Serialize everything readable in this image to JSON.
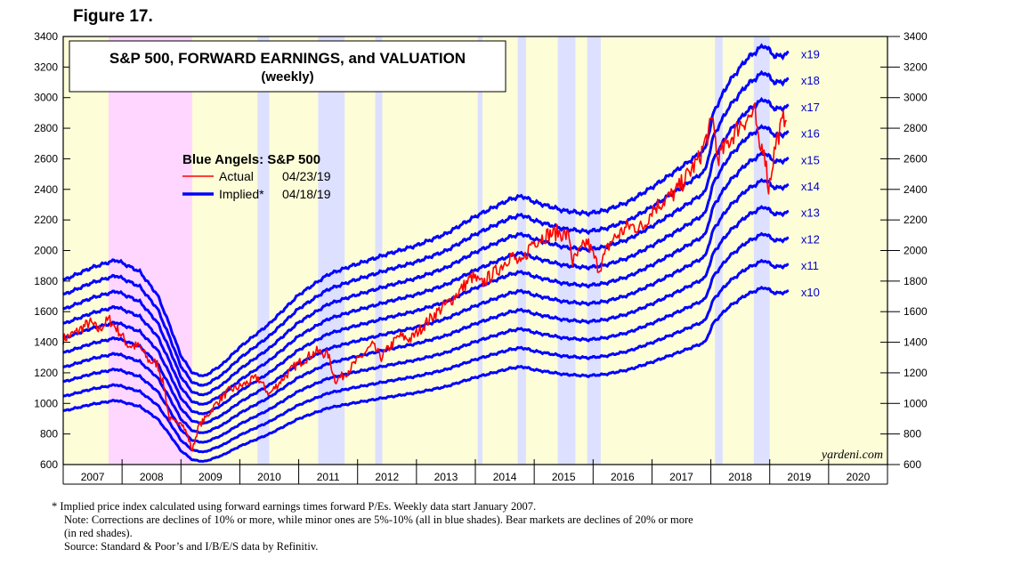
{
  "figure_label": "Figure 17.",
  "chart_data": {
    "type": "line",
    "title": "S&P 500, FORWARD EARNINGS, and VALUATION",
    "subtitle": "(weekly)",
    "legend_title": "Blue Angels: S&P 500",
    "legend": [
      {
        "name": "Actual",
        "date": "04/23/19",
        "color": "#ff0000"
      },
      {
        "name": "Implied*",
        "date": "04/18/19",
        "color": "#0000ff"
      }
    ],
    "ylim": [
      600,
      3400
    ],
    "yticks": [
      600,
      800,
      1000,
      1200,
      1400,
      1600,
      1800,
      2000,
      2200,
      2400,
      2600,
      2800,
      3000,
      3200,
      3400
    ],
    "xlim": [
      2007,
      2021
    ],
    "years": [
      "2007",
      "2008",
      "2009",
      "2010",
      "2011",
      "2012",
      "2013",
      "2014",
      "2015",
      "2016",
      "2017",
      "2018",
      "2019",
      "2020"
    ],
    "forward_earnings": {
      "x": [
        2007.0,
        2007.5,
        2007.9,
        2008.3,
        2008.6,
        2008.8,
        2009.0,
        2009.2,
        2009.4,
        2009.7,
        2010.0,
        2010.5,
        2011.0,
        2011.5,
        2011.9,
        2012.5,
        2013.0,
        2013.5,
        2014.0,
        2014.6,
        2014.8,
        2015.0,
        2015.5,
        2015.9,
        2016.2,
        2016.6,
        2017.0,
        2017.5,
        2017.9,
        2018.05,
        2018.3,
        2018.6,
        2018.9,
        2019.1,
        2019.32
      ],
      "y": [
        95,
        99.5,
        102,
        98,
        90,
        80,
        69,
        63,
        62,
        66,
        72,
        80,
        90,
        97,
        100,
        104,
        107,
        111,
        117,
        123,
        124,
        122,
        119,
        118,
        119,
        122,
        127,
        134,
        140,
        153,
        163,
        171,
        176,
        172,
        173
      ]
    },
    "series": [
      {
        "name": "x10",
        "multiple": 10
      },
      {
        "name": "x11",
        "multiple": 11
      },
      {
        "name": "x12",
        "multiple": 12
      },
      {
        "name": "x13",
        "multiple": 13
      },
      {
        "name": "x14",
        "multiple": 14
      },
      {
        "name": "x15",
        "multiple": 15
      },
      {
        "name": "x16",
        "multiple": 16
      },
      {
        "name": "x17",
        "multiple": 17
      },
      {
        "name": "x18",
        "multiple": 18
      },
      {
        "name": "x19",
        "multiple": 19
      }
    ],
    "actual": {
      "name": "Actual",
      "x": [
        2007.0,
        2007.2,
        2007.45,
        2007.6,
        2007.78,
        2007.95,
        2008.1,
        2008.3,
        2008.45,
        2008.6,
        2008.72,
        2008.8,
        2008.9,
        2009.0,
        2009.12,
        2009.19,
        2009.3,
        2009.45,
        2009.6,
        2009.8,
        2010.0,
        2010.3,
        2010.5,
        2010.7,
        2010.95,
        2011.3,
        2011.5,
        2011.62,
        2011.75,
        2011.95,
        2012.25,
        2012.4,
        2012.7,
        2012.9,
        2013.3,
        2013.6,
        2013.95,
        2014.1,
        2014.4,
        2014.6,
        2014.78,
        2014.95,
        2015.2,
        2015.4,
        2015.6,
        2015.65,
        2015.9,
        2016.1,
        2016.3,
        2016.6,
        2016.85,
        2017.0,
        2017.4,
        2017.8,
        2018.05,
        2018.1,
        2018.25,
        2018.5,
        2018.75,
        2018.82,
        2018.9,
        2018.98,
        2019.1,
        2019.3
      ],
      "y": [
        1420,
        1460,
        1530,
        1480,
        1550,
        1470,
        1380,
        1370,
        1280,
        1260,
        1100,
        900,
        870,
        890,
        780,
        690,
        850,
        920,
        1000,
        1080,
        1110,
        1170,
        1060,
        1150,
        1250,
        1340,
        1320,
        1150,
        1180,
        1260,
        1380,
        1300,
        1440,
        1420,
        1580,
        1680,
        1830,
        1780,
        1880,
        1970,
        1900,
        2050,
        2100,
        2120,
        2090,
        1920,
        2060,
        1880,
        2060,
        2160,
        2150,
        2270,
        2380,
        2600,
        2870,
        2600,
        2680,
        2830,
        2900,
        2650,
        2700,
        2400,
        2700,
        2930
      ]
    },
    "shading": [
      {
        "type": "bear",
        "label": "Bear markets are declines of 20% or more (in red shades)",
        "color": "#ffd6ff",
        "ranges": [
          [
            2007.77,
            2009.19
          ]
        ]
      },
      {
        "type": "correction",
        "label": "Corrections are declines of 10% or more, while minor ones are 5%-10% (all in blue shades)",
        "color": "#dde0ff",
        "ranges": [
          [
            2010.3,
            2010.5
          ],
          [
            2011.33,
            2011.78
          ],
          [
            2012.3,
            2012.42
          ],
          [
            2014.04,
            2014.12
          ],
          [
            2014.72,
            2014.86
          ],
          [
            2015.4,
            2015.7
          ],
          [
            2015.9,
            2016.13
          ],
          [
            2018.07,
            2018.2
          ],
          [
            2018.73,
            2019.0
          ]
        ]
      }
    ],
    "watermark": "yardeni.com"
  },
  "footnotes": {
    "line1": "*   Implied price index calculated using forward earnings times forward P/Es. Weekly data start January 2007.",
    "line2": "Note: Corrections are declines of 10% or more, while minor ones are 5%-10% (all in blue shades).  Bear markets are declines of 20% or more",
    "line3": "(in red shades).",
    "line4": "Source: Standard & Poor’s and I/B/E/S data by Refinitiv."
  },
  "colors": {
    "background": "#fdfdd8",
    "implied_line": "#0000ff",
    "actual_line": "#ff0000",
    "multiple_label": "#0000cc"
  }
}
